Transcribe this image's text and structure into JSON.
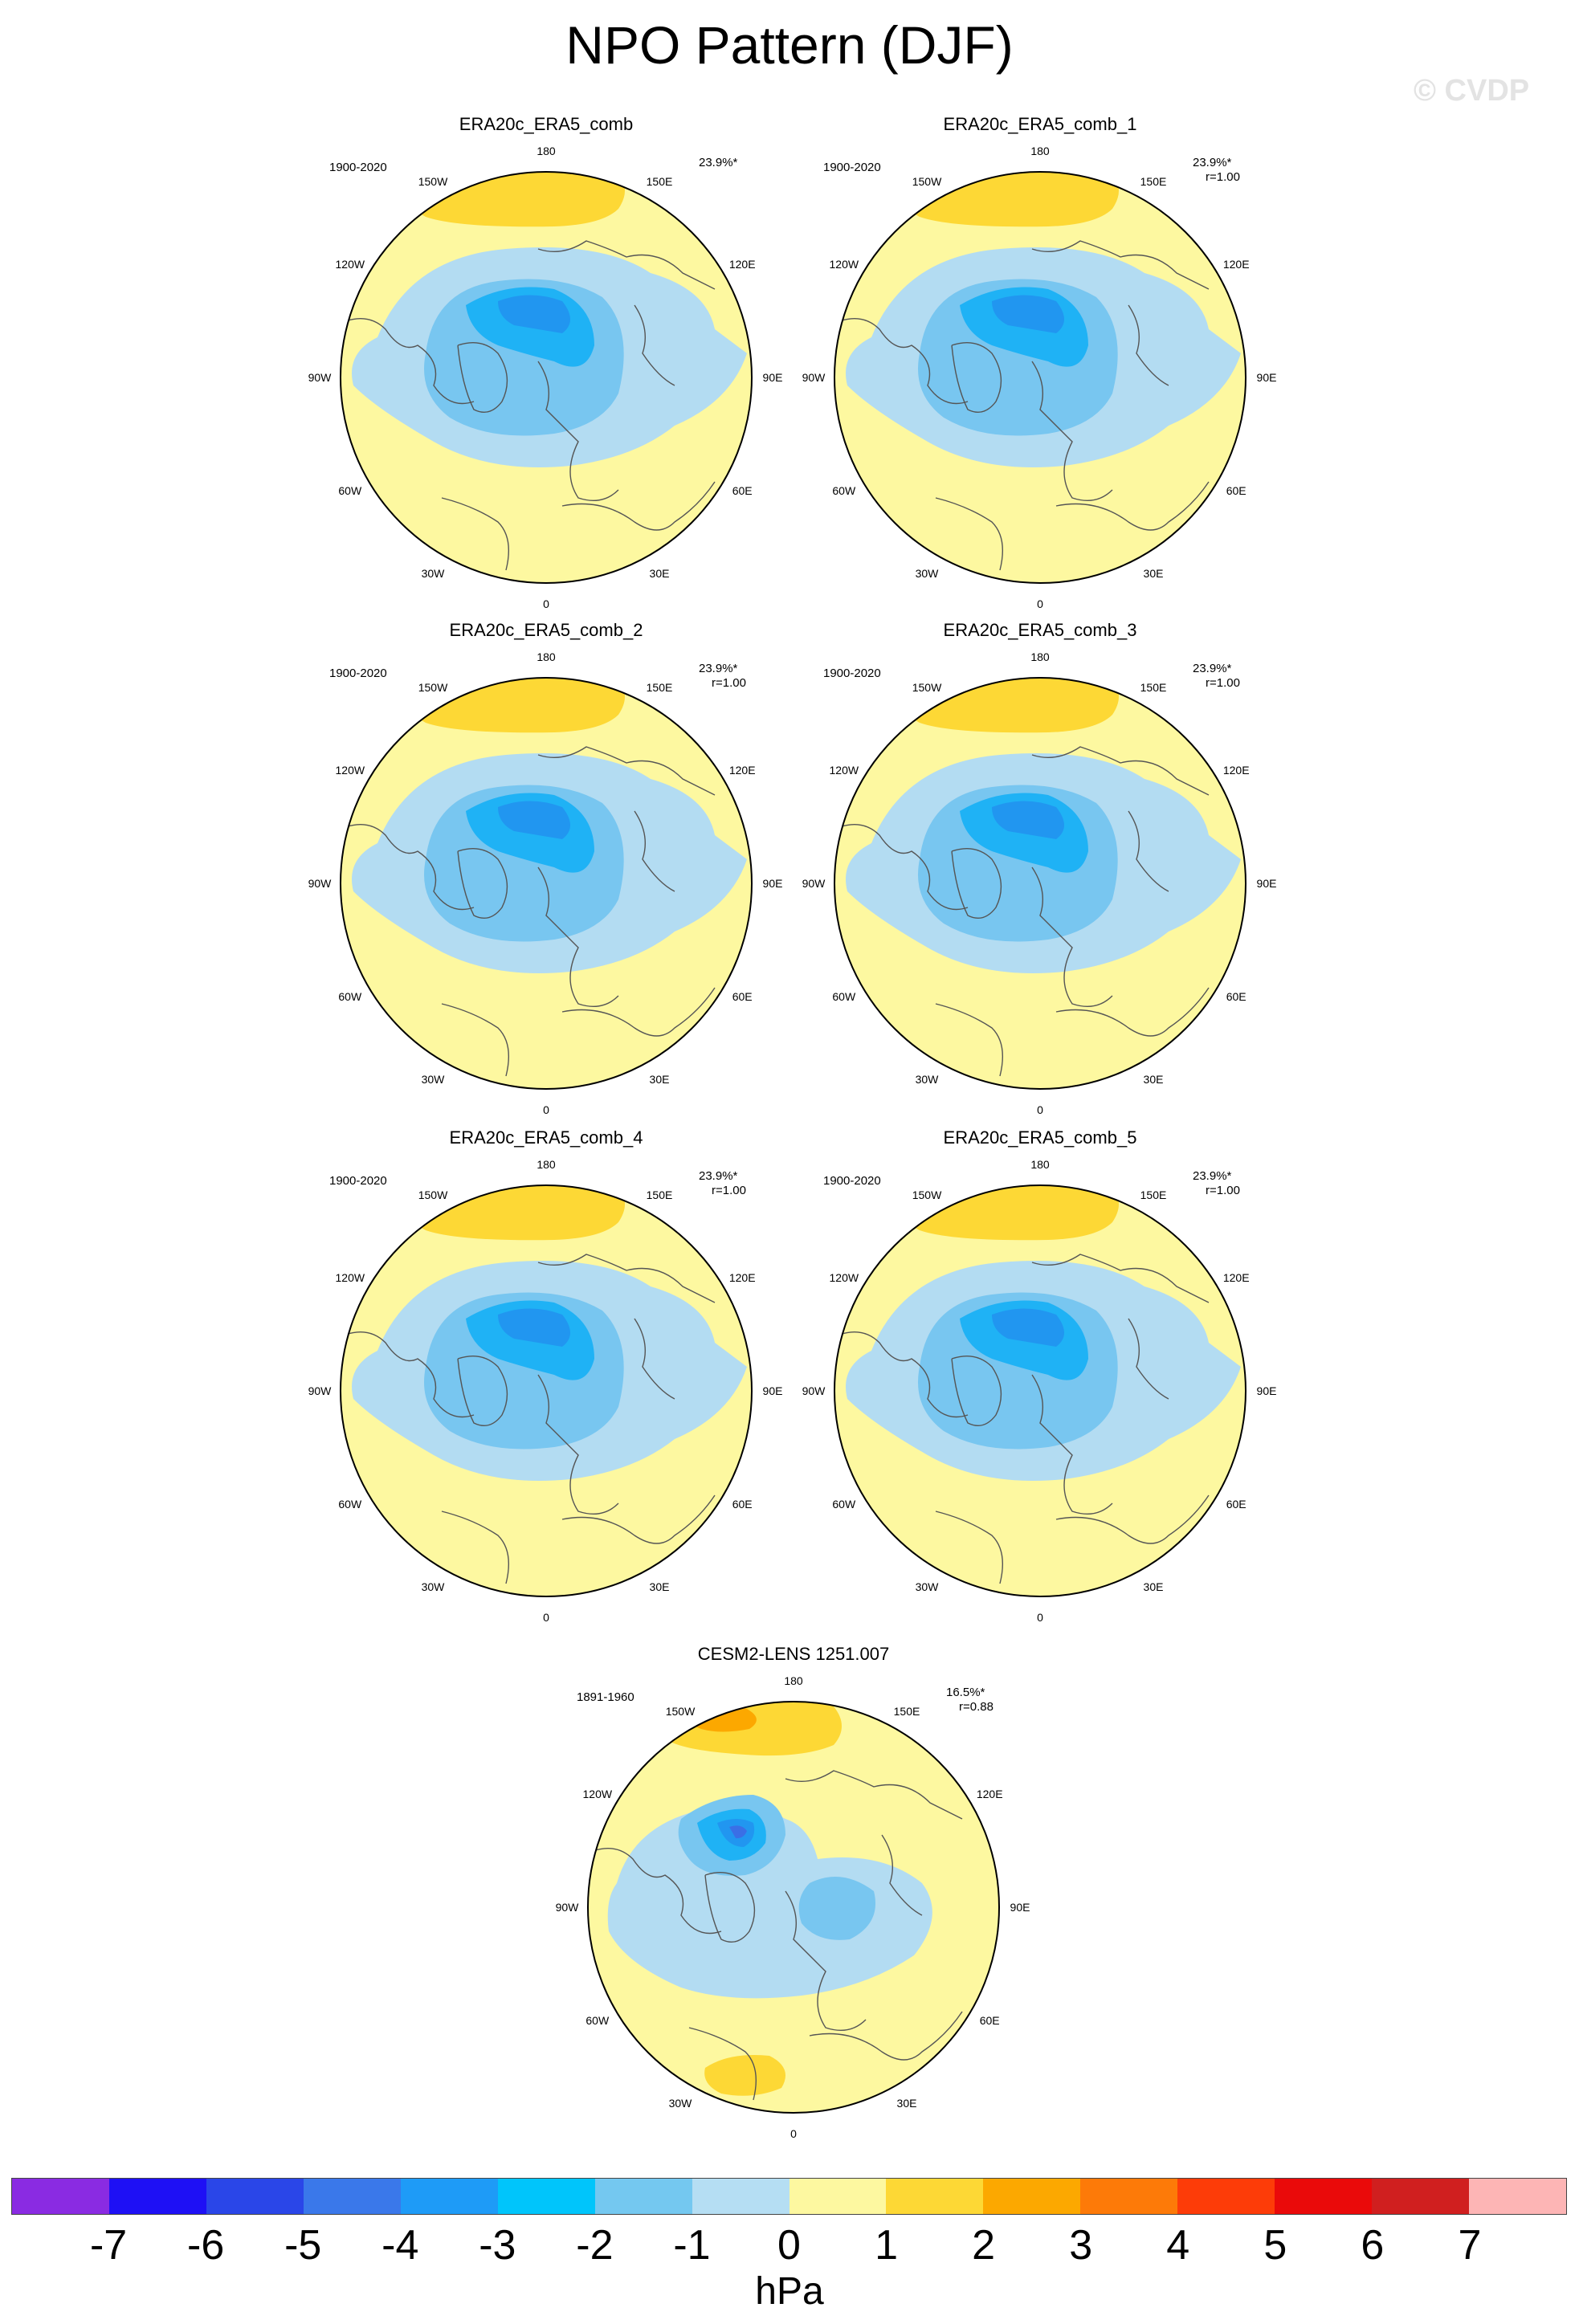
{
  "title": "NPO Pattern (DJF)",
  "watermark": "© CVDP",
  "colors": {
    "zero_pos": "#fdf8a0",
    "one_two": "#fdd835",
    "two_three": "#fca800",
    "neg_zero_one": "#b3dcf2",
    "neg_one_two": "#78c6f0",
    "neg_two_three": "#1fb2f5",
    "neg_three_four": "#2196f0",
    "neg_four_five": "#3a6fe6",
    "neg_five_six": "#2a46e8",
    "coast": "#555555"
  },
  "panels": [
    {
      "title": "ERA20c_ERA5_comb",
      "period": "1900-2020",
      "pct": "23.9%*",
      "r": ""
    },
    {
      "title": "ERA20c_ERA5_comb_1",
      "period": "1900-2020",
      "pct": "23.9%*",
      "r": "r=1.00"
    },
    {
      "title": "ERA20c_ERA5_comb_2",
      "period": "1900-2020",
      "pct": "23.9%*",
      "r": "r=1.00"
    },
    {
      "title": "ERA20c_ERA5_comb_3",
      "period": "1900-2020",
      "pct": "23.9%*",
      "r": "r=1.00"
    },
    {
      "title": "ERA20c_ERA5_comb_4",
      "period": "1900-2020",
      "pct": "23.9%*",
      "r": "r=1.00"
    },
    {
      "title": "ERA20c_ERA5_comb_5",
      "period": "1900-2020",
      "pct": "23.9%*",
      "r": "r=1.00"
    },
    {
      "title": "CESM2-LENS 1251.007",
      "period": "1891-1960",
      "pct": "16.5%*",
      "r": "r=0.88"
    }
  ],
  "lon_labels": [
    "180",
    "150E",
    "120E",
    "90E",
    "60E",
    "30E",
    "0",
    "30W",
    "60W",
    "90W",
    "120W",
    "150W"
  ],
  "colorbar": {
    "colors": [
      "#8a2be2",
      "#1e10f5",
      "#2a46e8",
      "#3a78ea",
      "#1e9bf7",
      "#00c5fb",
      "#74c8f0",
      "#b5def3",
      "#fdf8a0",
      "#fdd835",
      "#fca800",
      "#fd7a08",
      "#fd3c08",
      "#ea0a0a",
      "#d01f1f",
      "#fdb5b5"
    ],
    "ticks": [
      "-7",
      "-6",
      "-5",
      "-4",
      "-3",
      "-2",
      "-1",
      "0",
      "1",
      "2",
      "3",
      "4",
      "5",
      "6",
      "7"
    ],
    "units": "hPa"
  }
}
